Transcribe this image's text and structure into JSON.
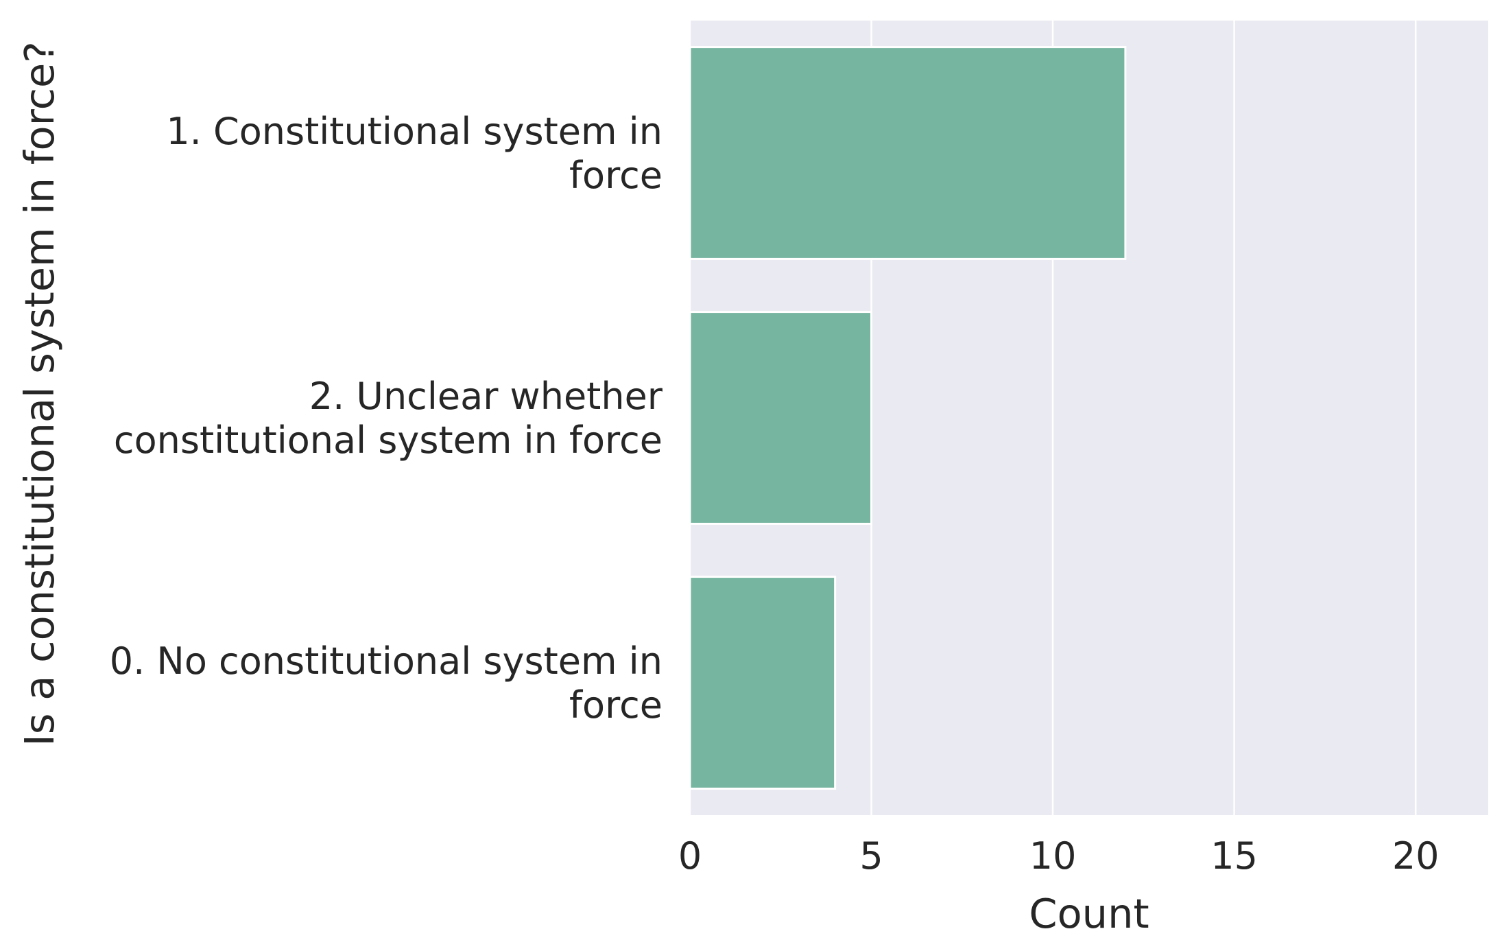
{
  "chart_data": {
    "type": "bar",
    "orientation": "horizontal",
    "categories": [
      "1. Constitutional system in force",
      "2. Unclear whether constitutional system in force",
      "0. No constitutional system in force"
    ],
    "category_label_lines": [
      [
        "1. Constitutional system in",
        "force"
      ],
      [
        "2. Unclear whether",
        "constitutional system in force"
      ],
      [
        "0. No constitutional system in",
        "force"
      ]
    ],
    "values": [
      12,
      5,
      4
    ],
    "xlabel": "Count",
    "ylabel": "Is a constitutional system in force?",
    "xlim": [
      0,
      22
    ],
    "xticks": [
      0,
      5,
      10,
      15,
      20
    ],
    "grid": true,
    "colors": {
      "bar": "#76b5a0",
      "background": "#eaeaf2",
      "grid": "#ffffff",
      "text": "#262626"
    }
  }
}
